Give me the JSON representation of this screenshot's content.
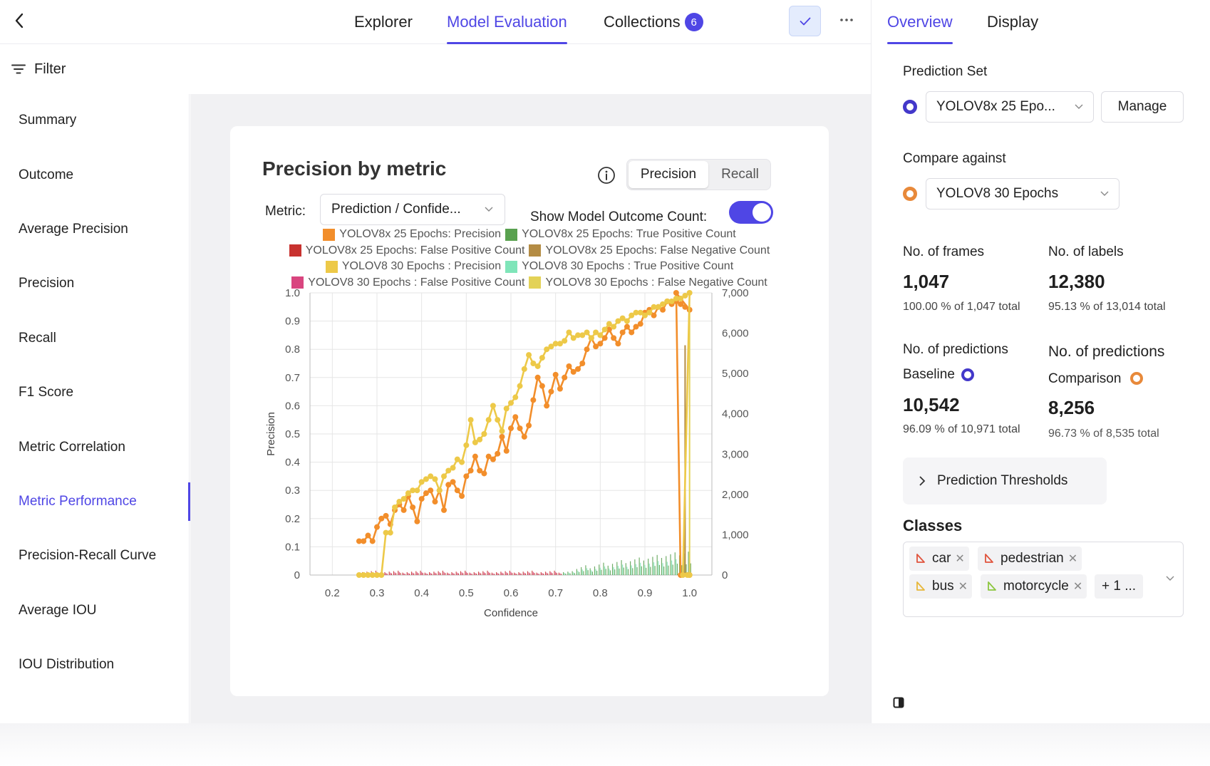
{
  "nav": {
    "tabs": [
      {
        "label": "Explorer"
      },
      {
        "label": "Model Evaluation"
      },
      {
        "label": "Collections",
        "badge": "6"
      }
    ],
    "active_tab": "Model Evaluation"
  },
  "filter": {
    "label": "Filter"
  },
  "sidebar": {
    "items": [
      {
        "label": "Summary"
      },
      {
        "label": "Outcome"
      },
      {
        "label": "Average Precision"
      },
      {
        "label": "Precision"
      },
      {
        "label": "Recall"
      },
      {
        "label": "F1 Score"
      },
      {
        "label": "Metric Correlation"
      },
      {
        "label": "Metric Performance"
      },
      {
        "label": "Precision-Recall Curve"
      },
      {
        "label": "Average IOU"
      },
      {
        "label": "IOU Distribution"
      }
    ],
    "active_item": "Metric Performance"
  },
  "card": {
    "title": "Precision by metric",
    "toggle": {
      "precision": "Precision",
      "recall": "Recall",
      "selected": "Precision"
    },
    "metric_label": "Metric:",
    "metric_value": "Prediction / Confide...",
    "outcome_label": "Show Model Outcome Count:",
    "outcome_on": true
  },
  "chart_data": {
    "type": "line",
    "xlabel": "Confidence",
    "ylabel": "Precision",
    "xlim": [
      0.15,
      1.05
    ],
    "ylim": [
      0,
      1.0
    ],
    "y2lim": [
      0,
      7000
    ],
    "x_ticks": [
      "0.2",
      "0.3",
      "0.4",
      "0.5",
      "0.6",
      "0.7",
      "0.8",
      "0.9",
      "1.0"
    ],
    "y_ticks": [
      "0",
      "0.1",
      "0.2",
      "0.3",
      "0.4",
      "0.5",
      "0.6",
      "0.7",
      "0.8",
      "0.9",
      "1.0"
    ],
    "y2_ticks": [
      "0",
      "1,000",
      "2,000",
      "3,000",
      "4,000",
      "5,000",
      "6,000",
      "7,000"
    ],
    "grid": true,
    "legend_position": "top",
    "legend": [
      {
        "name": "YOLOV8x 25 Epochs: Precision",
        "color": "#f28e2b"
      },
      {
        "name": "YOLOV8x 25 Epochs: True Positive Count",
        "color": "#59a14f"
      },
      {
        "name": "YOLOV8x 25 Epochs: False Positive Count",
        "color": "#c8322f"
      },
      {
        "name": "YOLOV8x 25 Epochs: False Negative Count",
        "color": "#b48c44"
      },
      {
        "name": "YOLOV8 30 Epochs : Precision",
        "color": "#edc948"
      },
      {
        "name": "YOLOV8 30 Epochs : True Positive Count",
        "color": "#7fe5b9"
      },
      {
        "name": "YOLOV8 30 Epochs : False Positive Count",
        "color": "#d9457f"
      },
      {
        "name": "YOLOV8 30 Epochs : False Negative Count",
        "color": "#e3d257"
      }
    ],
    "series": [
      {
        "name": "YOLOV8x 25 Epochs: Precision",
        "color": "#f28e2b",
        "x": [
          0.26,
          0.27,
          0.28,
          0.29,
          0.3,
          0.31,
          0.32,
          0.33,
          0.34,
          0.35,
          0.36,
          0.37,
          0.38,
          0.39,
          0.4,
          0.41,
          0.42,
          0.43,
          0.44,
          0.45,
          0.46,
          0.47,
          0.48,
          0.49,
          0.5,
          0.51,
          0.52,
          0.53,
          0.54,
          0.55,
          0.56,
          0.57,
          0.58,
          0.59,
          0.6,
          0.61,
          0.62,
          0.63,
          0.64,
          0.65,
          0.66,
          0.67,
          0.68,
          0.69,
          0.7,
          0.71,
          0.72,
          0.73,
          0.74,
          0.75,
          0.76,
          0.77,
          0.78,
          0.79,
          0.8,
          0.81,
          0.82,
          0.83,
          0.84,
          0.85,
          0.86,
          0.87,
          0.88,
          0.89,
          0.9,
          0.91,
          0.92,
          0.93,
          0.94,
          0.95,
          0.96,
          0.97,
          0.98,
          0.99,
          1.0
        ],
        "y": [
          0.12,
          0.12,
          0.14,
          0.12,
          0.17,
          0.2,
          0.21,
          0.18,
          0.23,
          0.25,
          0.23,
          0.28,
          0.24,
          0.19,
          0.27,
          0.29,
          0.3,
          0.26,
          0.3,
          0.23,
          0.32,
          0.33,
          0.3,
          0.28,
          0.35,
          0.37,
          0.42,
          0.37,
          0.36,
          0.42,
          0.41,
          0.43,
          0.49,
          0.44,
          0.52,
          0.56,
          0.52,
          0.49,
          0.53,
          0.62,
          0.7,
          0.67,
          0.6,
          0.65,
          0.71,
          0.66,
          0.7,
          0.74,
          0.72,
          0.73,
          0.75,
          0.8,
          0.84,
          0.81,
          0.82,
          0.84,
          0.87,
          0.84,
          0.82,
          0.86,
          0.88,
          0.86,
          0.88,
          0.89,
          0.93,
          0.94,
          0.92,
          0.95,
          0.94,
          0.97,
          0.96,
          0.97,
          0.96,
          0.95,
          0.94
        ],
        "tail": [
          [
            0.97,
            1.0
          ],
          [
            0.98,
            0.0
          ],
          [
            1.0,
            0.0
          ]
        ]
      },
      {
        "name": "YOLOV8 30 Epochs : Precision",
        "color": "#edc948",
        "x": [
          0.26,
          0.27,
          0.28,
          0.29,
          0.3,
          0.31,
          0.32,
          0.33,
          0.34,
          0.35,
          0.36,
          0.37,
          0.38,
          0.39,
          0.4,
          0.41,
          0.42,
          0.43,
          0.44,
          0.45,
          0.46,
          0.47,
          0.48,
          0.49,
          0.5,
          0.51,
          0.52,
          0.53,
          0.54,
          0.55,
          0.56,
          0.57,
          0.58,
          0.59,
          0.6,
          0.61,
          0.62,
          0.63,
          0.64,
          0.65,
          0.66,
          0.67,
          0.68,
          0.69,
          0.7,
          0.71,
          0.72,
          0.73,
          0.74,
          0.75,
          0.76,
          0.77,
          0.78,
          0.79,
          0.8,
          0.81,
          0.82,
          0.83,
          0.84,
          0.85,
          0.86,
          0.87,
          0.88,
          0.89,
          0.9,
          0.91,
          0.92,
          0.93,
          0.94,
          0.95,
          0.96,
          0.97,
          0.98,
          0.99,
          1.0
        ],
        "y": [
          0.0,
          0.0,
          0.0,
          0.0,
          0.0,
          0.0,
          0.15,
          0.15,
          0.24,
          0.26,
          0.27,
          0.29,
          0.3,
          0.3,
          0.33,
          0.34,
          0.35,
          0.34,
          0.3,
          0.35,
          0.37,
          0.38,
          0.41,
          0.4,
          0.46,
          0.55,
          0.47,
          0.48,
          0.5,
          0.55,
          0.6,
          0.55,
          0.51,
          0.59,
          0.61,
          0.63,
          0.67,
          0.73,
          0.78,
          0.75,
          0.74,
          0.77,
          0.8,
          0.81,
          0.82,
          0.82,
          0.83,
          0.86,
          0.84,
          0.85,
          0.85,
          0.86,
          0.84,
          0.86,
          0.85,
          0.87,
          0.89,
          0.88,
          0.9,
          0.91,
          0.9,
          0.92,
          0.93,
          0.93,
          0.92,
          0.93,
          0.95,
          0.95,
          0.96,
          0.97,
          0.97,
          0.98,
          0.98,
          0.99,
          1.0
        ],
        "tail": [
          [
            0.985,
            0.0
          ],
          [
            0.995,
            0.0
          ],
          [
            1.0,
            0.0
          ]
        ]
      }
    ],
    "counts_note": "small bar counts along confidence axis for TP/FP/FN per model",
    "tp_counts_peak": 300
  },
  "right": {
    "tabs": [
      {
        "label": "Overview"
      },
      {
        "label": "Display"
      }
    ],
    "active_tab": "Overview",
    "prediction_set_label": "Prediction Set",
    "prediction_set_value": "YOLOV8x 25 Epo...",
    "manage_label": "Manage",
    "compare_label": "Compare against",
    "compare_value": "YOLOV8 30 Epochs",
    "frames_label": "No. of frames",
    "frames_value": "1,047",
    "frames_sub": "100.00 % of 1,047 total",
    "labels_label": "No. of labels",
    "labels_value": "12,380",
    "labels_sub": "95.13 % of 13,014 total",
    "pred_base_label": "No. of predictions",
    "pred_base_sub_label": "Baseline",
    "pred_base_value": "10,542",
    "pred_base_sub": "96.09 % of 10,971 total",
    "pred_comp_label": "No. of predictions",
    "pred_comp_sub_label": "Comparison",
    "pred_comp_value": "8,256",
    "pred_comp_sub": "96.73 % of 8,535 total",
    "thresholds_label": "Prediction Thresholds",
    "classes_title": "Classes",
    "classes": [
      {
        "label": "car",
        "color": "#e0533c"
      },
      {
        "label": "pedestrian",
        "color": "#e0533c"
      },
      {
        "label": "bus",
        "color": "#e7b73a"
      },
      {
        "label": "motorcycle",
        "color": "#8cc63f"
      }
    ],
    "classes_more": "+ 1 ..."
  },
  "colors": {
    "accent": "#4f46e5",
    "baseline_dot": "#4338ca",
    "comparison_dot": "#e8893a"
  }
}
